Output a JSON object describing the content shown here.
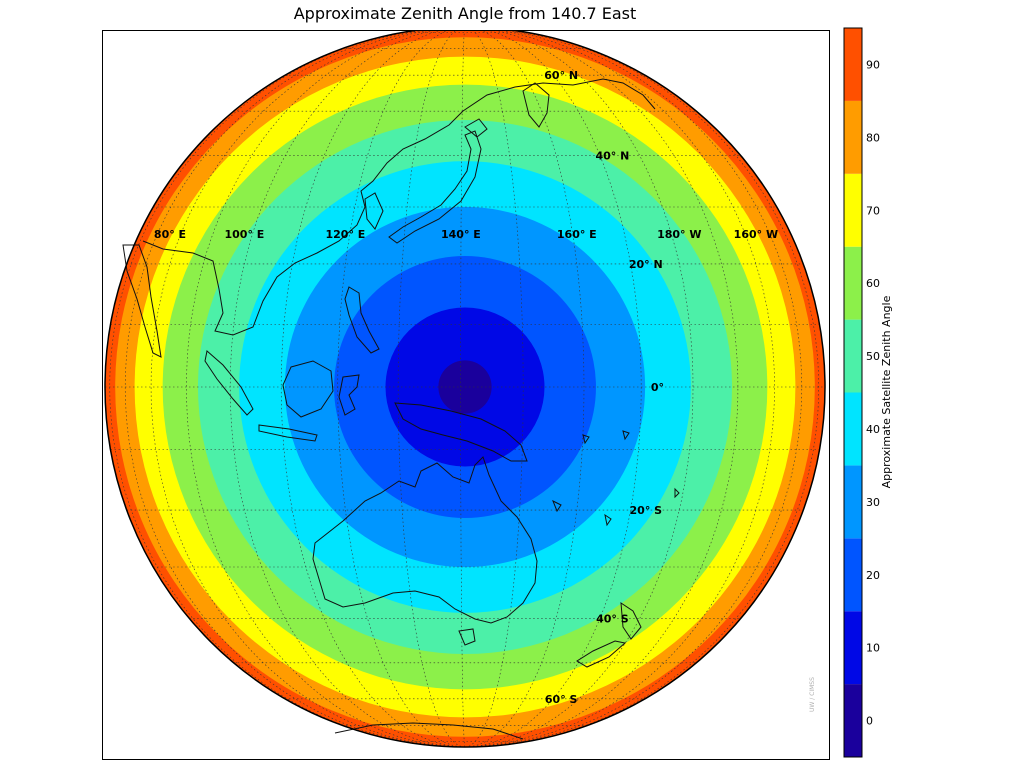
{
  "title": "Approximate Zenith Angle from 140.7 East",
  "credit": "UW / CIMSS",
  "map": {
    "projection": "geostationary-view orthographic",
    "sub_satellite_longitude": 140.7,
    "ring_step_degrees": 10,
    "ring_colors": [
      "#1a009c",
      "#0008e6",
      "#0055ff",
      "#0096ff",
      "#00e4ff",
      "#4cf0a8",
      "#8cf04a",
      "#ffff00",
      "#ff9c00",
      "#ff5000"
    ],
    "longitude_labels": [
      {
        "text": "80° E",
        "lon": 80
      },
      {
        "text": "100° E",
        "lon": 100
      },
      {
        "text": "120° E",
        "lon": 120
      },
      {
        "text": "140° E",
        "lon": 140
      },
      {
        "text": "160° E",
        "lon": 160
      },
      {
        "text": "180° W",
        "lon": 180
      },
      {
        "text": "160° W",
        "lon": -160
      }
    ],
    "latitude_labels": [
      {
        "text": "60° N",
        "lat": 60
      },
      {
        "text": "40° N",
        "lat": 40
      },
      {
        "text": "20° N",
        "lat": 20
      },
      {
        "text": "0°",
        "lat": 0
      },
      {
        "text": "20° S",
        "lat": -20
      },
      {
        "text": "40° S",
        "lat": -40
      },
      {
        "text": "60° S",
        "lat": -60
      }
    ]
  },
  "colorbar": {
    "label": "Approximate Satellite Zenith Angle",
    "min": -5,
    "max": 95,
    "ticks": [
      "0",
      "10",
      "20",
      "30",
      "40",
      "50",
      "60",
      "70",
      "80",
      "90"
    ],
    "bands": [
      {
        "from": -5,
        "to": 5,
        "color": "#1a009c"
      },
      {
        "from": 5,
        "to": 15,
        "color": "#0008e6"
      },
      {
        "from": 15,
        "to": 25,
        "color": "#0055ff"
      },
      {
        "from": 25,
        "to": 35,
        "color": "#0096ff"
      },
      {
        "from": 35,
        "to": 45,
        "color": "#00e4ff"
      },
      {
        "from": 45,
        "to": 55,
        "color": "#4cf0a8"
      },
      {
        "from": 55,
        "to": 65,
        "color": "#8cf04a"
      },
      {
        "from": 65,
        "to": 75,
        "color": "#ffff00"
      },
      {
        "from": 75,
        "to": 85,
        "color": "#ff9c00"
      },
      {
        "from": 85,
        "to": 95,
        "color": "#ff5000"
      }
    ]
  }
}
